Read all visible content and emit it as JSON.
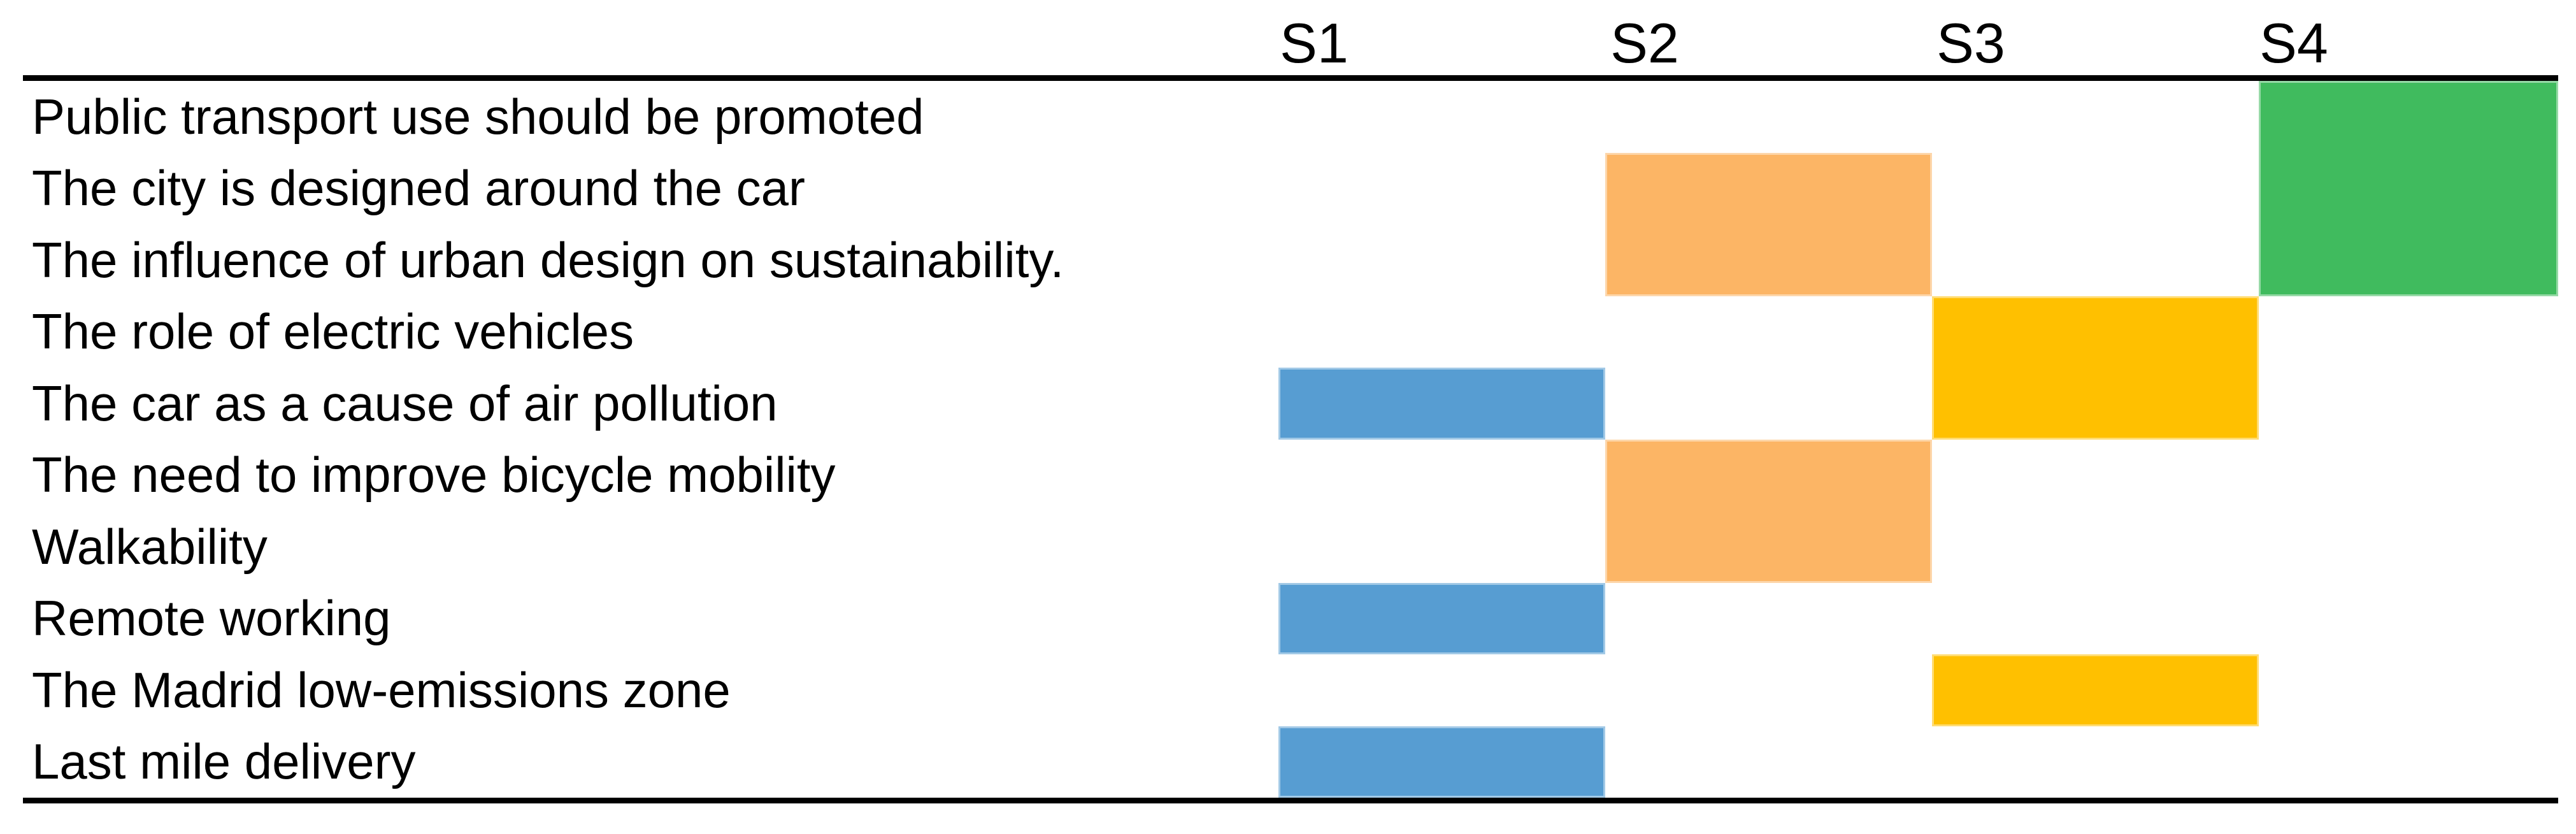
{
  "chart_data": {
    "type": "heatmap",
    "title": "",
    "description": "Gantt-style matrix showing which discussion topics are covered in sessions S1-S4",
    "columns": [
      "S1",
      "S2",
      "S3",
      "S4"
    ],
    "rows": [
      "Public transport use should be promoted",
      "The city is designed around the car",
      "The influence of urban design on sustainability.",
      "The role of electric vehicles",
      "The car as a cause of air pollution",
      "The need to improve bicycle mobility",
      "Walkability",
      "Remote working",
      "The Madrid low-emissions zone",
      "Last mile delivery"
    ],
    "assignments": {
      "Public transport use should be promoted": [
        "S4"
      ],
      "The city is designed around the car": [
        "S2",
        "S4"
      ],
      "The influence of urban design on sustainability.": [
        "S2",
        "S4"
      ],
      "The role of electric vehicles": [
        "S3"
      ],
      "The car as a cause of air pollution": [
        "S1",
        "S3"
      ],
      "The need to improve bicycle mobility": [
        "S2"
      ],
      "Walkability": [
        "S2"
      ],
      "Remote working": [
        "S1"
      ],
      "The Madrid low-emissions zone": [
        "S3"
      ],
      "Last mile delivery": [
        "S1"
      ]
    },
    "blocks": [
      {
        "col": "S4",
        "row_start": 1,
        "row_end": 3,
        "color_key": "s4_green"
      },
      {
        "col": "S2",
        "row_start": 2,
        "row_end": 3,
        "color_key": "s2_orange"
      },
      {
        "col": "S3",
        "row_start": 4,
        "row_end": 5,
        "color_key": "s3_yellow"
      },
      {
        "col": "S1",
        "row_start": 5,
        "row_end": 5,
        "color_key": "s1_blue"
      },
      {
        "col": "S2",
        "row_start": 6,
        "row_end": 7,
        "color_key": "s2_orange"
      },
      {
        "col": "S1",
        "row_start": 8,
        "row_end": 8,
        "color_key": "s1_blue"
      },
      {
        "col": "S3",
        "row_start": 9,
        "row_end": 9,
        "color_key": "s3_yellow"
      },
      {
        "col": "S1",
        "row_start": 10,
        "row_end": 10,
        "color_key": "s1_blue"
      }
    ],
    "legend": "none",
    "grid": false
  },
  "colors": {
    "s1_blue": "#579DD2",
    "s2_orange": "#FCB565",
    "s3_yellow": "#FFC000",
    "s4_green": "#40BB5E",
    "rule": "#000000",
    "text": "#000000",
    "background": "#FFFFFF"
  }
}
